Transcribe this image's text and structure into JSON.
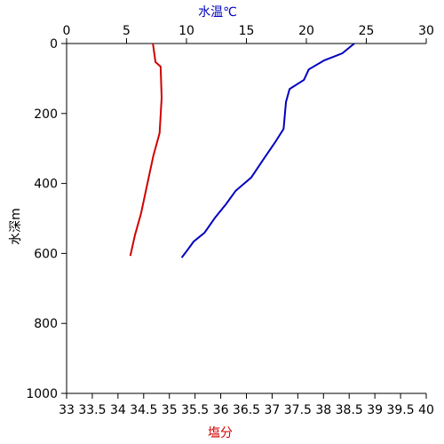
{
  "chart_data": {
    "type": "profile",
    "x2_label": "水温℃",
    "x_label": "塩分",
    "y_label": "水深m",
    "xlim": [
      33,
      40
    ],
    "xticks": [
      33,
      33.5,
      34,
      34.5,
      35,
      35.5,
      36,
      36.5,
      37,
      37.5,
      38,
      38.5,
      39,
      39.5,
      40
    ],
    "x2lim": [
      0,
      30
    ],
    "x2ticks": [
      0,
      5,
      10,
      15,
      20,
      25,
      30
    ],
    "ylim": [
      0,
      1000
    ],
    "yticks": [
      0,
      200,
      400,
      600,
      800,
      1000
    ],
    "y_inverted": true,
    "x2_color": "#0000c0",
    "x_color": "#d00000",
    "series": [
      {
        "name": "水温℃",
        "axis": "x2",
        "color": "#0000c0",
        "x": [
          24.0,
          23.0,
          21.5,
          20.2,
          19.8,
          18.6,
          18.3,
          18.1,
          17.4,
          16.4,
          15.4,
          14.1,
          13.3,
          12.4,
          11.5,
          10.6,
          10.0,
          9.6
        ],
        "y": [
          0,
          28,
          48,
          74,
          104,
          130,
          167,
          244,
          282,
          332,
          383,
          421,
          459,
          497,
          541,
          566,
          594,
          612
        ]
      },
      {
        "name": "塩分",
        "axis": "x",
        "color": "#d00000",
        "x": [
          34.68,
          34.73,
          34.83,
          34.85,
          34.81,
          34.69,
          34.56,
          34.45,
          34.33,
          34.24
        ],
        "y": [
          0,
          53,
          66,
          155,
          256,
          320,
          409,
          485,
          548,
          607
        ]
      }
    ]
  }
}
